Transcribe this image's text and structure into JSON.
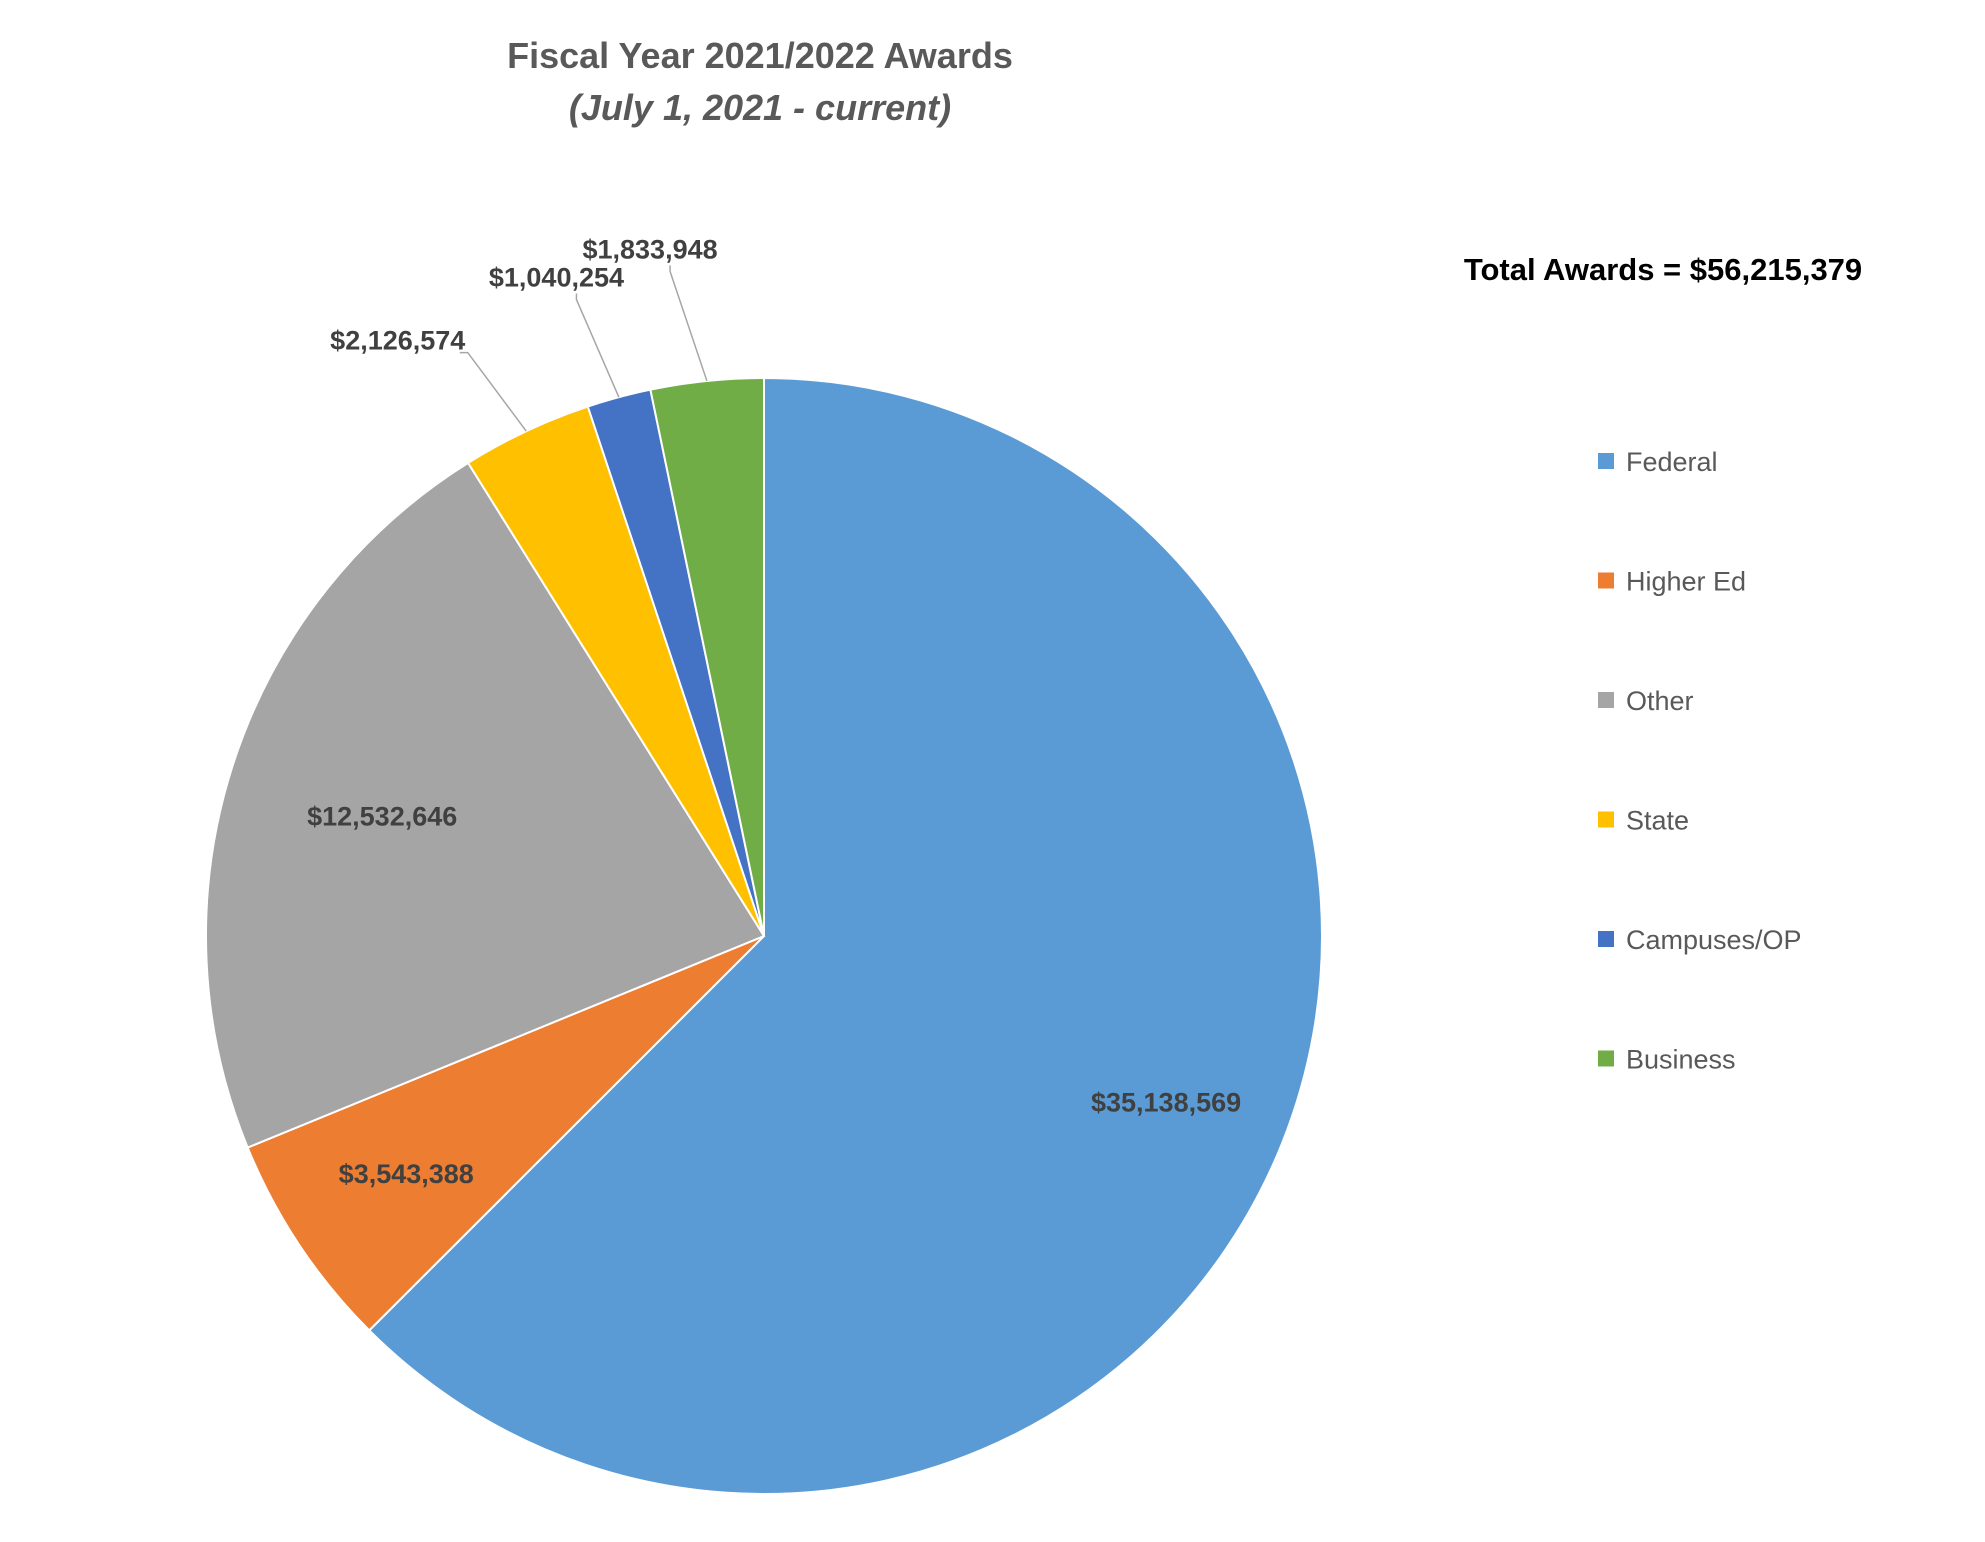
{
  "chart_data": {
    "type": "pie",
    "title": "Fiscal Year 2021/2022 Awards",
    "subtitle": "(July 1, 2021 - current)",
    "annotation": "Total Awards = $56,215,379",
    "legend_position": "right",
    "categories": [
      "Federal",
      "Higher Ed",
      "Other",
      "State",
      "Campuses/OP",
      "Business"
    ],
    "values": [
      35138569,
      3543388,
      12532646,
      2126574,
      1040254,
      1833948
    ],
    "labels": [
      "$35,138,569",
      "$3,543,388",
      "$12,532,646",
      "$2,126,574",
      "$1,040,254",
      "$1,833,948"
    ],
    "colors": [
      "#5B9BD5",
      "#ED7D31",
      "#A5A5A5",
      "#FFC000",
      "#4472C4",
      "#70AD47"
    ]
  }
}
